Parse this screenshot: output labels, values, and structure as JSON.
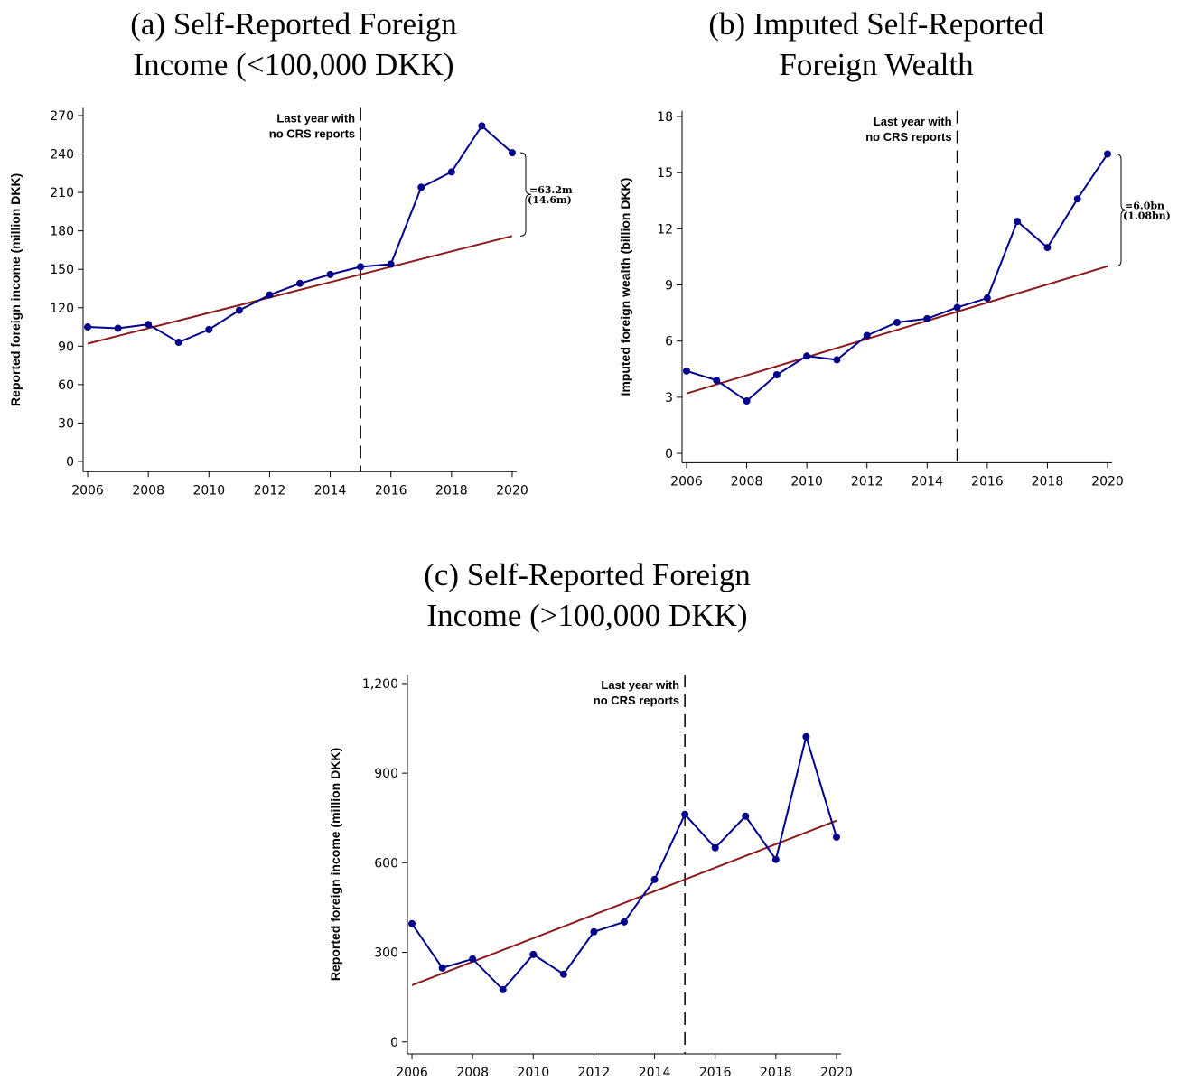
{
  "chart_data": [
    {
      "type": "line",
      "title": "(a) Self-Reported Foreign Income (<100,000 DKK)",
      "ylabel": "Reported foreign income (million DKK)",
      "x": [
        2006,
        2007,
        2008,
        2009,
        2010,
        2011,
        2012,
        2013,
        2014,
        2015,
        2016,
        2017,
        2018,
        2019,
        2020
      ],
      "series": [
        {
          "color": "#00008b",
          "values": [
            105,
            104,
            107,
            93,
            103,
            118,
            130,
            139,
            146,
            152,
            154,
            214,
            226,
            262,
            241
          ]
        }
      ],
      "trend": {
        "x": [
          2006,
          2020
        ],
        "values": [
          92,
          176
        ],
        "color": "#8b1a1a"
      },
      "vline": {
        "x": 2015,
        "label_lines": [
          "Last year with",
          "no CRS reports"
        ]
      },
      "gap_labels": [
        "=63.2m",
        "(14.6m)"
      ],
      "xlim": [
        2005.85,
        2020.15
      ],
      "xticks": [
        2006,
        2008,
        2010,
        2012,
        2014,
        2016,
        2018,
        2020
      ],
      "ylim": [
        -8,
        276
      ],
      "yticks": [
        0,
        30,
        60,
        90,
        120,
        150,
        180,
        210,
        240,
        270
      ]
    },
    {
      "type": "line",
      "title": "(b) Imputed Self-Reported Foreign Wealth",
      "ylabel": "Imputed foreign wealth (billion DKK)",
      "x": [
        2006,
        2007,
        2008,
        2009,
        2010,
        2011,
        2012,
        2013,
        2014,
        2015,
        2016,
        2017,
        2018,
        2019,
        2020
      ],
      "series": [
        {
          "color": "#00008b",
          "values": [
            4.4,
            3.9,
            2.8,
            4.2,
            5.2,
            5.0,
            6.3,
            7.0,
            7.2,
            7.8,
            8.3,
            12.4,
            11.0,
            13.6,
            16.0
          ]
        }
      ],
      "trend": {
        "x": [
          2006,
          2020
        ],
        "values": [
          3.2,
          10.0
        ],
        "color": "#8b1a1a"
      },
      "vline": {
        "x": 2015,
        "label_lines": [
          "Last year with",
          "no CRS reports"
        ]
      },
      "gap_labels": [
        "=6.0bn",
        "(1.08bn)"
      ],
      "xlim": [
        2005.85,
        2020.15
      ],
      "xticks": [
        2006,
        2008,
        2010,
        2012,
        2014,
        2016,
        2018,
        2020
      ],
      "ylim": [
        -0.5,
        18.3
      ],
      "yticks": [
        0,
        3,
        6,
        9,
        12,
        15,
        18
      ]
    },
    {
      "type": "line",
      "title": "(c) Self-Reported Foreign Income (>100,000 DKK)",
      "ylabel": "Reported foreign income (million DKK)",
      "x": [
        2006,
        2007,
        2008,
        2009,
        2010,
        2011,
        2012,
        2013,
        2014,
        2015,
        2016,
        2017,
        2018,
        2019,
        2020
      ],
      "series": [
        {
          "color": "#00008b",
          "values": [
            396,
            248,
            278,
            175,
            293,
            227,
            369,
            402,
            544,
            762,
            650,
            756,
            611,
            1022,
            686
          ]
        }
      ],
      "trend": {
        "x": [
          2006,
          2020
        ],
        "values": [
          190,
          741
        ],
        "color": "#8b1a1a"
      },
      "vline": {
        "x": 2015,
        "label_lines": [
          "Last year with",
          "no CRS reports"
        ]
      },
      "xlim": [
        2005.85,
        2020.15
      ],
      "xticks": [
        2006,
        2008,
        2010,
        2012,
        2014,
        2016,
        2018,
        2020
      ],
      "ylim": [
        -40,
        1230
      ],
      "yticks": [
        0,
        300,
        600,
        900,
        {
          "value": 1200,
          "label": "1,200"
        }
      ]
    }
  ]
}
